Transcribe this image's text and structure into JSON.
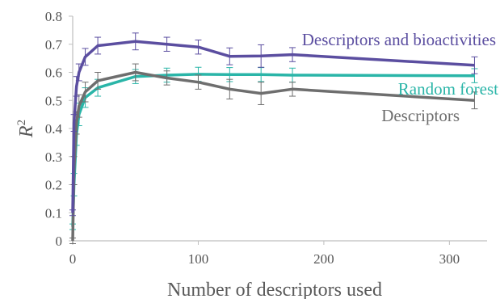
{
  "chart_data": {
    "type": "line",
    "xlabel": "Number of descriptors used",
    "ylabel": "R",
    "ylabel_sup": "2",
    "xlim": [
      0,
      330
    ],
    "ylim": [
      0,
      0.8
    ],
    "xticks": [
      0,
      100,
      200,
      300
    ],
    "xtick_labels": [
      "0",
      "100",
      "200",
      "300"
    ],
    "yticks": [
      0,
      0.1,
      0.2,
      0.3,
      0.4,
      0.5,
      0.6,
      0.7,
      0.8
    ],
    "ytick_labels": [
      "0",
      "0.1",
      "0.2",
      "0.3",
      "0.4",
      "0.5",
      "0.6",
      "0.7",
      "0.8"
    ],
    "grid": false,
    "legend": "inline labels",
    "series": [
      {
        "name": "Descriptors and bioactivities",
        "color": "#5b4ea0",
        "x": [
          0,
          1,
          3,
          5,
          10,
          20,
          50,
          75,
          100,
          125,
          150,
          175,
          320
        ],
        "y": [
          0.1,
          0.42,
          0.55,
          0.6,
          0.655,
          0.695,
          0.71,
          0.7,
          0.69,
          0.657,
          0.658,
          0.663,
          0.625
        ],
        "err": [
          0.01,
          0.03,
          0.035,
          0.03,
          0.03,
          0.03,
          0.03,
          0.025,
          0.025,
          0.03,
          0.04,
          0.025,
          0.03
        ]
      },
      {
        "name": "Random forest",
        "color": "#2ab5a8",
        "x": [
          0,
          1,
          3,
          5,
          10,
          20,
          50,
          75,
          100,
          125,
          150,
          175,
          320
        ],
        "y": [
          0.05,
          0.2,
          0.38,
          0.45,
          0.51,
          0.545,
          0.585,
          0.59,
          0.593,
          0.592,
          0.592,
          0.59,
          0.588
        ],
        "err": [
          0.01,
          0.04,
          0.04,
          0.04,
          0.035,
          0.03,
          0.025,
          0.025,
          0.025,
          0.025,
          0.025,
          0.025,
          0.025
        ]
      },
      {
        "name": "Descriptors",
        "color": "#6e6e6e",
        "x": [
          0,
          1,
          3,
          5,
          10,
          20,
          50,
          75,
          100,
          125,
          150,
          175,
          320
        ],
        "y": [
          0.0,
          0.25,
          0.42,
          0.48,
          0.53,
          0.57,
          0.6,
          0.58,
          0.565,
          0.54,
          0.525,
          0.54,
          0.5
        ],
        "err": [
          0.01,
          0.05,
          0.04,
          0.04,
          0.035,
          0.03,
          0.03,
          0.025,
          0.025,
          0.035,
          0.04,
          0.025,
          0.03
        ]
      }
    ]
  }
}
